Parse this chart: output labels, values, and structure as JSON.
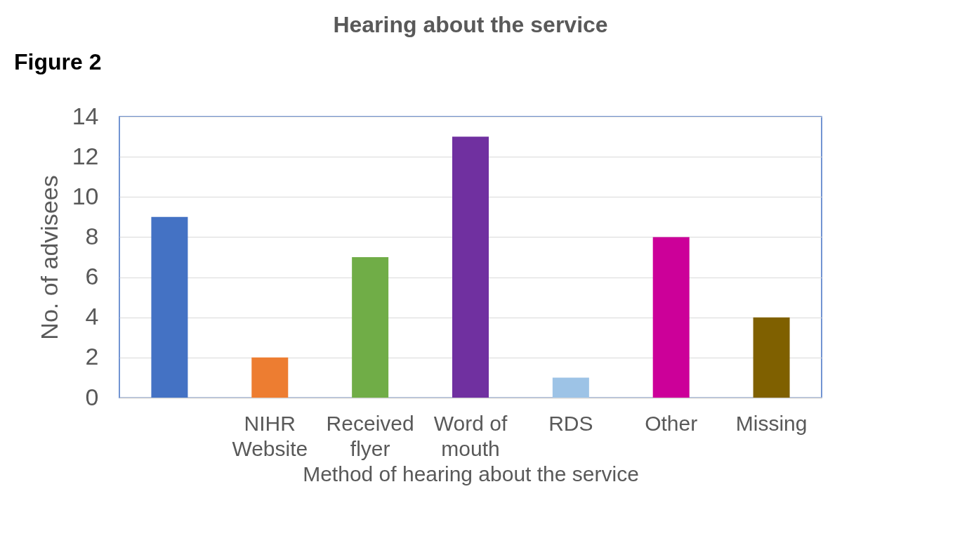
{
  "chart_data": {
    "type": "bar",
    "title": "Hearing about the service",
    "annotations": [
      "Figure 2"
    ],
    "xlabel": "Method of hearing about the service",
    "ylabel": "No. of advisees",
    "categories": [
      null,
      "NIHR Website",
      "Received flyer",
      "Word of mouth",
      "RDS",
      "Other",
      "Missing"
    ],
    "values": [
      9,
      2,
      7,
      13,
      1,
      8,
      4
    ],
    "colors": [
      "#4472c4",
      "#ed7d31",
      "#70ad47",
      "#7030a0",
      "#9dc3e6",
      "#cc0099",
      "#7f6000"
    ],
    "ylim": [
      0,
      14
    ],
    "yticks": [
      0,
      2,
      4,
      6,
      8,
      10,
      12,
      14
    ],
    "grid": "y"
  }
}
